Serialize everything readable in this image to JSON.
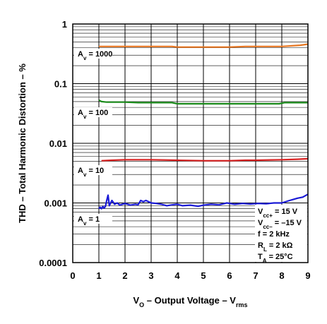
{
  "chart_data": {
    "type": "line",
    "title": "",
    "xlabel": {
      "main": "V",
      "sub1": "O",
      "mid": " – Output Voltage – V",
      "sub2": "rms"
    },
    "ylabel": "THD – Total Harmonic Distortion – %",
    "xlim": [
      0,
      9
    ],
    "ylim": [
      0.0001,
      1
    ],
    "yscale": "log",
    "grid": true,
    "legend": "none",
    "x_ticks": [
      "0",
      "1",
      "2",
      "3",
      "4",
      "5",
      "6",
      "7",
      "8",
      "9"
    ],
    "y_ticks": [
      "1",
      "0.1",
      "0.01",
      "0.001",
      "0.0001"
    ],
    "series": [
      {
        "label": {
          "main": "A",
          "sub": "v",
          "rest": " = 1000"
        },
        "color": "#e87722",
        "x": [
          1.0,
          2.0,
          3.0,
          3.8,
          4.0,
          5.0,
          6.0,
          6.6,
          7.0,
          8.0,
          8.7,
          9.0
        ],
        "y": [
          0.42,
          0.42,
          0.42,
          0.42,
          0.41,
          0.41,
          0.41,
          0.42,
          0.42,
          0.42,
          0.44,
          0.46
        ]
      },
      {
        "label": {
          "main": "A",
          "sub": "v",
          "rest": " = 100"
        },
        "color": "#1a8a1a",
        "x": [
          1.0,
          1.1,
          1.3,
          1.5,
          2.0,
          2.5,
          3.0,
          3.5,
          3.8,
          4.0,
          4.2,
          5.0,
          6.0,
          7.0,
          7.9,
          8.1,
          9.0
        ],
        "y": [
          0.053,
          0.05,
          0.049,
          0.049,
          0.049,
          0.048,
          0.048,
          0.048,
          0.048,
          0.046,
          0.046,
          0.046,
          0.046,
          0.046,
          0.046,
          0.048,
          0.048
        ]
      },
      {
        "label": {
          "main": "A",
          "sub": "v",
          "rest": " = 10"
        },
        "color": "#d62020",
        "x": [
          1.1,
          1.5,
          2.0,
          3.0,
          4.0,
          5.0,
          6.0,
          6.6,
          7.0,
          8.0,
          8.6,
          9.0
        ],
        "y": [
          0.0051,
          0.0052,
          0.0053,
          0.0053,
          0.0052,
          0.0051,
          0.0051,
          0.0052,
          0.0052,
          0.0053,
          0.0054,
          0.0055
        ]
      },
      {
        "label": {
          "main": "A",
          "sub": "v",
          "rest": " = 1"
        },
        "color": "#1a1ad6",
        "x": [
          1.0,
          1.05,
          1.1,
          1.15,
          1.2,
          1.25,
          1.3,
          1.35,
          1.4,
          1.5,
          1.6,
          1.7,
          1.8,
          2.0,
          2.2,
          2.4,
          2.5,
          2.6,
          2.7,
          2.8,
          3.0,
          3.2,
          3.4,
          3.6,
          3.8,
          4.0,
          4.2,
          4.5,
          4.8,
          5.0,
          5.3,
          5.6,
          5.9,
          6.2,
          6.5,
          6.8,
          7.1,
          7.4,
          7.7,
          8.0,
          8.3,
          8.6,
          8.8,
          9.0
        ],
        "y": [
          0.0008,
          0.00085,
          0.0008,
          0.00087,
          0.00082,
          0.00088,
          0.0011,
          0.00135,
          0.0009,
          0.0011,
          0.00095,
          0.001,
          0.00092,
          0.00098,
          0.00092,
          0.00095,
          0.00093,
          0.0011,
          0.00105,
          0.0011,
          0.001,
          0.00098,
          0.00095,
          0.0009,
          0.00093,
          0.00095,
          0.0009,
          0.00092,
          0.00088,
          0.00092,
          0.00095,
          0.00093,
          0.001,
          0.00095,
          0.00098,
          0.00096,
          0.00098,
          0.00097,
          0.001,
          0.001,
          0.0011,
          0.0012,
          0.00125,
          0.0014
        ]
      }
    ],
    "conditions": [
      {
        "main": "V",
        "sub": "cc+",
        "rest": " = 15 V"
      },
      {
        "main": "V",
        "sub": "cc–",
        "rest": " = –15 V"
      },
      {
        "main": "f = 2 kHz",
        "sub": "",
        "rest": ""
      },
      {
        "main": "R",
        "sub": "L",
        "rest": " = 2 kΩ"
      },
      {
        "main": "T",
        "sub": "A",
        "rest": " = 25°C"
      }
    ]
  }
}
